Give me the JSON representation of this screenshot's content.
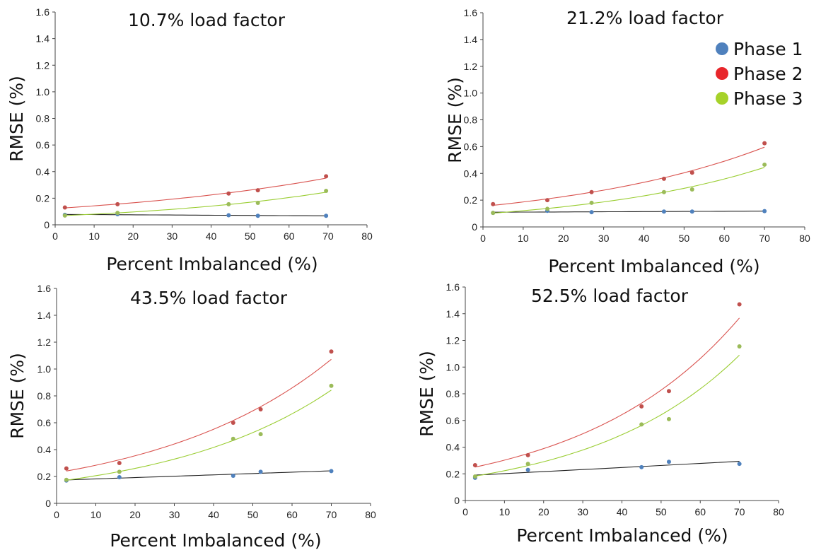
{
  "chart_data": [
    {
      "type": "scatter",
      "title": "10.7% load factor",
      "xlabel": "Percent Imbalanced (%)",
      "ylabel": "RMSE (%)",
      "xlim": [
        0,
        80
      ],
      "ylim": [
        0,
        1.6
      ],
      "xticks": [
        "0",
        "10",
        "20",
        "30",
        "40",
        "50",
        "60",
        "70",
        "80"
      ],
      "yticks": [
        "0",
        "0.2",
        "0.4",
        "0.6",
        "0.8",
        "1.0",
        "1.2",
        "1.4",
        "1.6"
      ],
      "series": [
        {
          "name": "Phase 1",
          "color": "#4f81bd",
          "trend_color": "#222222",
          "points": [
            [
              2.5,
              0.075
            ],
            [
              16,
              0.08
            ],
            [
              44.5,
              0.072
            ],
            [
              52,
              0.068
            ],
            [
              69.5,
              0.068
            ]
          ]
        },
        {
          "name": "Phase 2",
          "color": "#c0504d",
          "trend_color": "#d9534f",
          "points": [
            [
              2.5,
              0.13
            ],
            [
              16,
              0.155
            ],
            [
              44.5,
              0.235
            ],
            [
              52,
              0.26
            ],
            [
              69.5,
              0.365
            ]
          ]
        },
        {
          "name": "Phase 3",
          "color": "#9bbb59",
          "trend_color": "#9acd32",
          "points": [
            [
              2.5,
              0.07
            ],
            [
              16,
              0.09
            ],
            [
              44.5,
              0.155
            ],
            [
              52,
              0.165
            ],
            [
              69.5,
              0.255
            ]
          ]
        }
      ]
    },
    {
      "type": "scatter",
      "title": "21.2% load factor",
      "xlabel": "Percent Imbalanced (%)",
      "ylabel": "RMSE (%)",
      "xlim": [
        0,
        80
      ],
      "ylim": [
        0,
        1.6
      ],
      "xticks": [
        "0",
        "10",
        "20",
        "30",
        "40",
        "50",
        "60",
        "70",
        "80"
      ],
      "yticks": [
        "0",
        "0.2",
        "0.4",
        "0.6",
        "0.8",
        "1.0",
        "1.2",
        "1.4",
        "1.6"
      ],
      "series": [
        {
          "name": "Phase 1",
          "color": "#4f81bd",
          "trend_color": "#222222",
          "points": [
            [
              2.5,
              0.105
            ],
            [
              16,
              0.12
            ],
            [
              27,
              0.11
            ],
            [
              45,
              0.115
            ],
            [
              52,
              0.115
            ],
            [
              70,
              0.118
            ]
          ]
        },
        {
          "name": "Phase 2",
          "color": "#c0504d",
          "trend_color": "#d9534f",
          "points": [
            [
              2.5,
              0.17
            ],
            [
              16,
              0.2
            ],
            [
              27,
              0.26
            ],
            [
              45,
              0.36
            ],
            [
              52,
              0.405
            ],
            [
              70,
              0.625
            ]
          ]
        },
        {
          "name": "Phase 3",
          "color": "#9bbb59",
          "trend_color": "#9acd32",
          "points": [
            [
              2.5,
              0.105
            ],
            [
              16,
              0.135
            ],
            [
              27,
              0.18
            ],
            [
              45,
              0.26
            ],
            [
              52,
              0.28
            ],
            [
              70,
              0.465
            ]
          ]
        }
      ]
    },
    {
      "type": "scatter",
      "title": "43.5% load factor",
      "xlabel": "Percent Imbalanced (%)",
      "ylabel": "RMSE (%)",
      "xlim": [
        0,
        80
      ],
      "ylim": [
        0,
        1.6
      ],
      "xticks": [
        "0",
        "10",
        "20",
        "30",
        "40",
        "50",
        "60",
        "70",
        "80"
      ],
      "yticks": [
        "0",
        "0.2",
        "0.4",
        "0.6",
        "0.8",
        "1.0",
        "1.2",
        "1.4",
        "1.6"
      ],
      "series": [
        {
          "name": "Phase 1",
          "color": "#4f81bd",
          "trend_color": "#222222",
          "points": [
            [
              2.5,
              0.17
            ],
            [
              16,
              0.195
            ],
            [
              45,
              0.205
            ],
            [
              52,
              0.235
            ],
            [
              70,
              0.24
            ]
          ]
        },
        {
          "name": "Phase 2",
          "color": "#c0504d",
          "trend_color": "#d9534f",
          "points": [
            [
              2.5,
              0.26
            ],
            [
              16,
              0.3
            ],
            [
              45,
              0.6
            ],
            [
              52,
              0.7
            ],
            [
              70,
              1.13
            ]
          ]
        },
        {
          "name": "Phase 3",
          "color": "#9bbb59",
          "trend_color": "#9acd32",
          "points": [
            [
              2.5,
              0.175
            ],
            [
              16,
              0.235
            ],
            [
              45,
              0.48
            ],
            [
              52,
              0.515
            ],
            [
              70,
              0.875
            ]
          ]
        }
      ]
    },
    {
      "type": "scatter",
      "title": "52.5% load factor",
      "xlabel": "Percent Imbalanced (%)",
      "ylabel": "RMSE (%)",
      "xlim": [
        0,
        80
      ],
      "ylim": [
        0,
        1.6
      ],
      "xticks": [
        "0",
        "10",
        "20",
        "30",
        "40",
        "50",
        "60",
        "70",
        "80"
      ],
      "yticks": [
        "0",
        "0.2",
        "0.4",
        "0.6",
        "0.8",
        "1.0",
        "1.2",
        "1.4",
        "1.6"
      ],
      "series": [
        {
          "name": "Phase 1",
          "color": "#4f81bd",
          "trend_color": "#222222",
          "points": [
            [
              2.5,
              0.17
            ],
            [
              16,
              0.23
            ],
            [
              45,
              0.25
            ],
            [
              52,
              0.29
            ],
            [
              70,
              0.275
            ]
          ]
        },
        {
          "name": "Phase 2",
          "color": "#c0504d",
          "trend_color": "#d9534f",
          "points": [
            [
              2.5,
              0.265
            ],
            [
              16,
              0.34
            ],
            [
              45,
              0.705
            ],
            [
              52,
              0.82
            ],
            [
              70,
              1.47
            ]
          ]
        },
        {
          "name": "Phase 3",
          "color": "#9bbb59",
          "trend_color": "#9acd32",
          "points": [
            [
              2.5,
              0.18
            ],
            [
              16,
              0.275
            ],
            [
              45,
              0.57
            ],
            [
              52,
              0.61
            ],
            [
              70,
              1.155
            ]
          ]
        }
      ]
    }
  ],
  "legend": {
    "placement": "top-right",
    "items": [
      {
        "label": "Phase 1",
        "color": "#4f81bd"
      },
      {
        "label": "Phase 2",
        "color": "#e8262b"
      },
      {
        "label": "Phase 3",
        "color": "#a6d22a"
      }
    ]
  }
}
